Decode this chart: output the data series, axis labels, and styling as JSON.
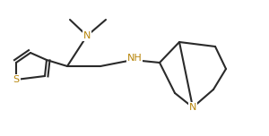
{
  "bg_color": "#ffffff",
  "line_color": "#2a2a2a",
  "atom_color": "#b8860b",
  "figsize": [
    3.0,
    1.52
  ],
  "dpi": 100,
  "xlim": [
    0,
    300
  ],
  "ylim": [
    0,
    152
  ]
}
